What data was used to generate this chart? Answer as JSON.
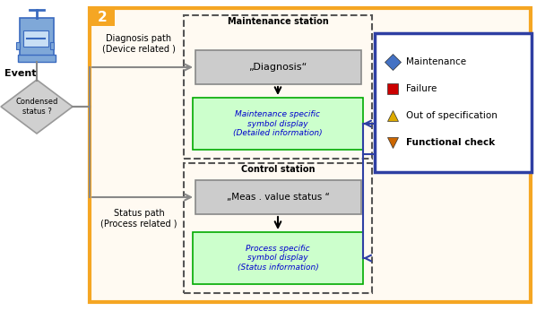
{
  "fig_width": 6.08,
  "fig_height": 3.47,
  "dpi": 100,
  "bg_color": "#ffffff",
  "orange_border_color": "#f5a623",
  "orange_fill": "#f5a623",
  "blue_border_color": "#2e3fa3",
  "dashed_border_color": "#555555",
  "gray_box_fill": "#cccccc",
  "green_box_fill": "#ccffcc",
  "green_box_border": "#00aa00",
  "gray_box_border": "#888888",
  "diamond_fill": "#d0d0d0",
  "diamond_border": "#999999",
  "arrow_color": "#888888",
  "text_black": "#000000",
  "text_blue": "#0000cc",
  "title_label": "2",
  "maintenance_station_label": "Maintenance station",
  "diagnosis_box_label": "„Diagnosis“",
  "maintenance_display_label": "Maintenance specific\nsymbol display\n(Detailed information)",
  "control_station_label": "Control station",
  "meas_box_label": "„Meas . value status “",
  "process_display_label": "Process specific\nsymbol display\n(Status information)",
  "event_label": "Event",
  "condensed_label": "Condensed\nstatus ?",
  "diagnosis_path_label": "Diagnosis path\n(Device related )",
  "status_path_label": "Status path\n(Process related )",
  "legend_items": [
    "Maintenance",
    "Failure",
    "Out of specification",
    "Functional check"
  ],
  "legend_colors": [
    "#4472c4",
    "#cc0000",
    "#ddaa00",
    "#cc6600"
  ],
  "legend_marker_types": [
    "D",
    "s",
    "^",
    "v"
  ]
}
